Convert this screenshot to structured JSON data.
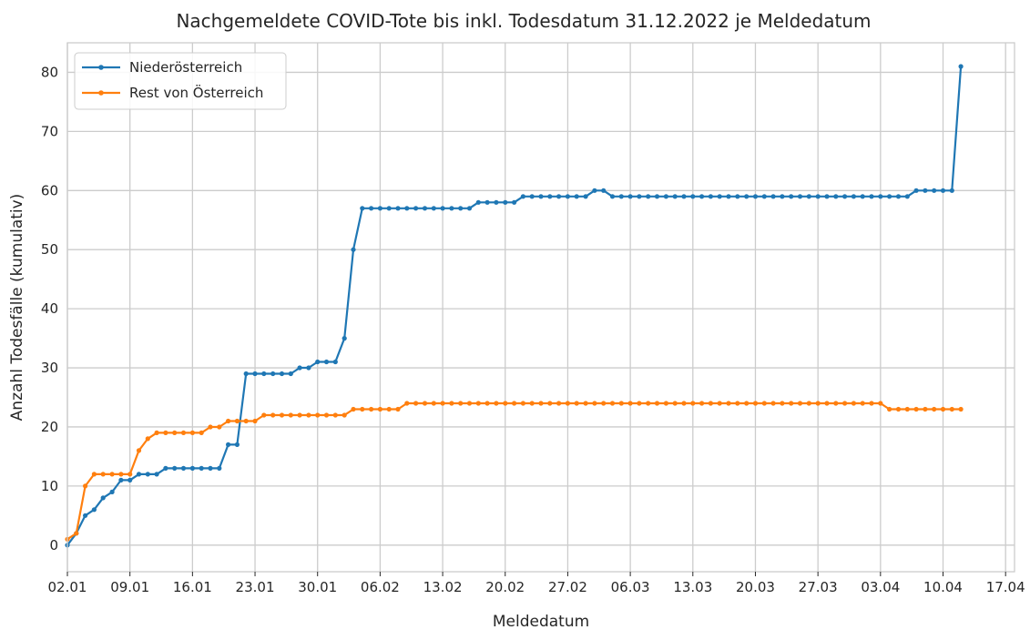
{
  "chart_data": {
    "type": "line",
    "title": "Nachgemeldete COVID-Tote bis inkl. Todesdatum 31.12.2022 je Meldedatum",
    "xlabel": "Meldedatum",
    "ylabel": "Anzahl Todesfälle (kumulativ)",
    "xlim": [
      "2023-01-02",
      "2023-04-18"
    ],
    "ylim": [
      -4.5,
      85
    ],
    "yticks": [
      0,
      10,
      20,
      30,
      40,
      50,
      60,
      70,
      80
    ],
    "xticks": [
      {
        "date": "2023-01-02",
        "label": "02.01"
      },
      {
        "date": "2023-01-09",
        "label": "09.01"
      },
      {
        "date": "2023-01-16",
        "label": "16.01"
      },
      {
        "date": "2023-01-23",
        "label": "23.01"
      },
      {
        "date": "2023-01-30",
        "label": "30.01"
      },
      {
        "date": "2023-02-06",
        "label": "06.02"
      },
      {
        "date": "2023-02-13",
        "label": "13.02"
      },
      {
        "date": "2023-02-20",
        "label": "20.02"
      },
      {
        "date": "2023-02-27",
        "label": "27.02"
      },
      {
        "date": "2023-03-06",
        "label": "06.03"
      },
      {
        "date": "2023-03-13",
        "label": "13.03"
      },
      {
        "date": "2023-03-20",
        "label": "20.03"
      },
      {
        "date": "2023-03-27",
        "label": "27.03"
      },
      {
        "date": "2023-04-03",
        "label": "03.04"
      },
      {
        "date": "2023-04-10",
        "label": "10.04"
      },
      {
        "date": "2023-04-17",
        "label": "17.04"
      }
    ],
    "grid": true,
    "legend_position": "top-left",
    "series": [
      {
        "name": "Niederösterreich",
        "color": "#1f77b4",
        "points": [
          [
            "2023-01-02",
            0
          ],
          [
            "2023-01-03",
            2
          ],
          [
            "2023-01-04",
            5
          ],
          [
            "2023-01-05",
            6
          ],
          [
            "2023-01-06",
            8
          ],
          [
            "2023-01-07",
            9
          ],
          [
            "2023-01-08",
            11
          ],
          [
            "2023-01-09",
            11
          ],
          [
            "2023-01-10",
            12
          ],
          [
            "2023-01-11",
            12
          ],
          [
            "2023-01-12",
            12
          ],
          [
            "2023-01-13",
            13
          ],
          [
            "2023-01-14",
            13
          ],
          [
            "2023-01-15",
            13
          ],
          [
            "2023-01-16",
            13
          ],
          [
            "2023-01-17",
            13
          ],
          [
            "2023-01-18",
            13
          ],
          [
            "2023-01-19",
            13
          ],
          [
            "2023-01-20",
            17
          ],
          [
            "2023-01-21",
            17
          ],
          [
            "2023-01-22",
            29
          ],
          [
            "2023-01-23",
            29
          ],
          [
            "2023-01-24",
            29
          ],
          [
            "2023-01-25",
            29
          ],
          [
            "2023-01-26",
            29
          ],
          [
            "2023-01-27",
            29
          ],
          [
            "2023-01-28",
            30
          ],
          [
            "2023-01-29",
            30
          ],
          [
            "2023-01-30",
            31
          ],
          [
            "2023-01-31",
            31
          ],
          [
            "2023-02-01",
            31
          ],
          [
            "2023-02-02",
            35
          ],
          [
            "2023-02-03",
            50
          ],
          [
            "2023-02-04",
            57
          ],
          [
            "2023-02-05",
            57
          ],
          [
            "2023-02-06",
            57
          ],
          [
            "2023-02-07",
            57
          ],
          [
            "2023-02-08",
            57
          ],
          [
            "2023-02-09",
            57
          ],
          [
            "2023-02-10",
            57
          ],
          [
            "2023-02-11",
            57
          ],
          [
            "2023-02-12",
            57
          ],
          [
            "2023-02-13",
            57
          ],
          [
            "2023-02-14",
            57
          ],
          [
            "2023-02-15",
            57
          ],
          [
            "2023-02-16",
            57
          ],
          [
            "2023-02-17",
            58
          ],
          [
            "2023-02-18",
            58
          ],
          [
            "2023-02-19",
            58
          ],
          [
            "2023-02-20",
            58
          ],
          [
            "2023-02-21",
            58
          ],
          [
            "2023-02-22",
            59
          ],
          [
            "2023-02-23",
            59
          ],
          [
            "2023-02-24",
            59
          ],
          [
            "2023-02-25",
            59
          ],
          [
            "2023-02-26",
            59
          ],
          [
            "2023-02-27",
            59
          ],
          [
            "2023-02-28",
            59
          ],
          [
            "2023-03-01",
            59
          ],
          [
            "2023-03-02",
            60
          ],
          [
            "2023-03-03",
            60
          ],
          [
            "2023-03-04",
            59
          ],
          [
            "2023-03-05",
            59
          ],
          [
            "2023-03-06",
            59
          ],
          [
            "2023-03-07",
            59
          ],
          [
            "2023-03-08",
            59
          ],
          [
            "2023-03-09",
            59
          ],
          [
            "2023-03-10",
            59
          ],
          [
            "2023-03-11",
            59
          ],
          [
            "2023-03-12",
            59
          ],
          [
            "2023-03-13",
            59
          ],
          [
            "2023-03-14",
            59
          ],
          [
            "2023-03-15",
            59
          ],
          [
            "2023-03-16",
            59
          ],
          [
            "2023-03-17",
            59
          ],
          [
            "2023-03-18",
            59
          ],
          [
            "2023-03-19",
            59
          ],
          [
            "2023-03-20",
            59
          ],
          [
            "2023-03-21",
            59
          ],
          [
            "2023-03-22",
            59
          ],
          [
            "2023-03-23",
            59
          ],
          [
            "2023-03-24",
            59
          ],
          [
            "2023-03-25",
            59
          ],
          [
            "2023-03-26",
            59
          ],
          [
            "2023-03-27",
            59
          ],
          [
            "2023-03-28",
            59
          ],
          [
            "2023-03-29",
            59
          ],
          [
            "2023-03-30",
            59
          ],
          [
            "2023-03-31",
            59
          ],
          [
            "2023-04-01",
            59
          ],
          [
            "2023-04-02",
            59
          ],
          [
            "2023-04-03",
            59
          ],
          [
            "2023-04-04",
            59
          ],
          [
            "2023-04-05",
            59
          ],
          [
            "2023-04-06",
            59
          ],
          [
            "2023-04-07",
            60
          ],
          [
            "2023-04-08",
            60
          ],
          [
            "2023-04-09",
            60
          ],
          [
            "2023-04-10",
            60
          ],
          [
            "2023-04-11",
            60
          ],
          [
            "2023-04-12",
            81
          ]
        ]
      },
      {
        "name": "Rest von Österreich",
        "color": "#ff7f0e",
        "points": [
          [
            "2023-01-02",
            1
          ],
          [
            "2023-01-03",
            2
          ],
          [
            "2023-01-04",
            10
          ],
          [
            "2023-01-05",
            12
          ],
          [
            "2023-01-06",
            12
          ],
          [
            "2023-01-07",
            12
          ],
          [
            "2023-01-08",
            12
          ],
          [
            "2023-01-09",
            12
          ],
          [
            "2023-01-10",
            16
          ],
          [
            "2023-01-11",
            18
          ],
          [
            "2023-01-12",
            19
          ],
          [
            "2023-01-13",
            19
          ],
          [
            "2023-01-14",
            19
          ],
          [
            "2023-01-15",
            19
          ],
          [
            "2023-01-16",
            19
          ],
          [
            "2023-01-17",
            19
          ],
          [
            "2023-01-18",
            20
          ],
          [
            "2023-01-19",
            20
          ],
          [
            "2023-01-20",
            21
          ],
          [
            "2023-01-21",
            21
          ],
          [
            "2023-01-22",
            21
          ],
          [
            "2023-01-23",
            21
          ],
          [
            "2023-01-24",
            22
          ],
          [
            "2023-01-25",
            22
          ],
          [
            "2023-01-26",
            22
          ],
          [
            "2023-01-27",
            22
          ],
          [
            "2023-01-28",
            22
          ],
          [
            "2023-01-29",
            22
          ],
          [
            "2023-01-30",
            22
          ],
          [
            "2023-01-31",
            22
          ],
          [
            "2023-02-01",
            22
          ],
          [
            "2023-02-02",
            22
          ],
          [
            "2023-02-03",
            23
          ],
          [
            "2023-02-04",
            23
          ],
          [
            "2023-02-05",
            23
          ],
          [
            "2023-02-06",
            23
          ],
          [
            "2023-02-07",
            23
          ],
          [
            "2023-02-08",
            23
          ],
          [
            "2023-02-09",
            24
          ],
          [
            "2023-02-10",
            24
          ],
          [
            "2023-02-11",
            24
          ],
          [
            "2023-02-12",
            24
          ],
          [
            "2023-02-13",
            24
          ],
          [
            "2023-02-14",
            24
          ],
          [
            "2023-02-15",
            24
          ],
          [
            "2023-02-16",
            24
          ],
          [
            "2023-02-17",
            24
          ],
          [
            "2023-02-18",
            24
          ],
          [
            "2023-02-19",
            24
          ],
          [
            "2023-02-20",
            24
          ],
          [
            "2023-02-21",
            24
          ],
          [
            "2023-02-22",
            24
          ],
          [
            "2023-02-23",
            24
          ],
          [
            "2023-02-24",
            24
          ],
          [
            "2023-02-25",
            24
          ],
          [
            "2023-02-26",
            24
          ],
          [
            "2023-02-27",
            24
          ],
          [
            "2023-02-28",
            24
          ],
          [
            "2023-03-01",
            24
          ],
          [
            "2023-03-02",
            24
          ],
          [
            "2023-03-03",
            24
          ],
          [
            "2023-03-04",
            24
          ],
          [
            "2023-03-05",
            24
          ],
          [
            "2023-03-06",
            24
          ],
          [
            "2023-03-07",
            24
          ],
          [
            "2023-03-08",
            24
          ],
          [
            "2023-03-09",
            24
          ],
          [
            "2023-03-10",
            24
          ],
          [
            "2023-03-11",
            24
          ],
          [
            "2023-03-12",
            24
          ],
          [
            "2023-03-13",
            24
          ],
          [
            "2023-03-14",
            24
          ],
          [
            "2023-03-15",
            24
          ],
          [
            "2023-03-16",
            24
          ],
          [
            "2023-03-17",
            24
          ],
          [
            "2023-03-18",
            24
          ],
          [
            "2023-03-19",
            24
          ],
          [
            "2023-03-20",
            24
          ],
          [
            "2023-03-21",
            24
          ],
          [
            "2023-03-22",
            24
          ],
          [
            "2023-03-23",
            24
          ],
          [
            "2023-03-24",
            24
          ],
          [
            "2023-03-25",
            24
          ],
          [
            "2023-03-26",
            24
          ],
          [
            "2023-03-27",
            24
          ],
          [
            "2023-03-28",
            24
          ],
          [
            "2023-03-29",
            24
          ],
          [
            "2023-03-30",
            24
          ],
          [
            "2023-03-31",
            24
          ],
          [
            "2023-04-01",
            24
          ],
          [
            "2023-04-02",
            24
          ],
          [
            "2023-04-03",
            24
          ],
          [
            "2023-04-04",
            23
          ],
          [
            "2023-04-05",
            23
          ],
          [
            "2023-04-06",
            23
          ],
          [
            "2023-04-07",
            23
          ],
          [
            "2023-04-08",
            23
          ],
          [
            "2023-04-09",
            23
          ],
          [
            "2023-04-10",
            23
          ],
          [
            "2023-04-11",
            23
          ],
          [
            "2023-04-12",
            23
          ]
        ]
      }
    ],
    "style": {
      "grid_color": "#cccccc",
      "frame_color": "#cccccc",
      "background": "#ffffff",
      "legend_frame_color": "#cccccc"
    }
  }
}
